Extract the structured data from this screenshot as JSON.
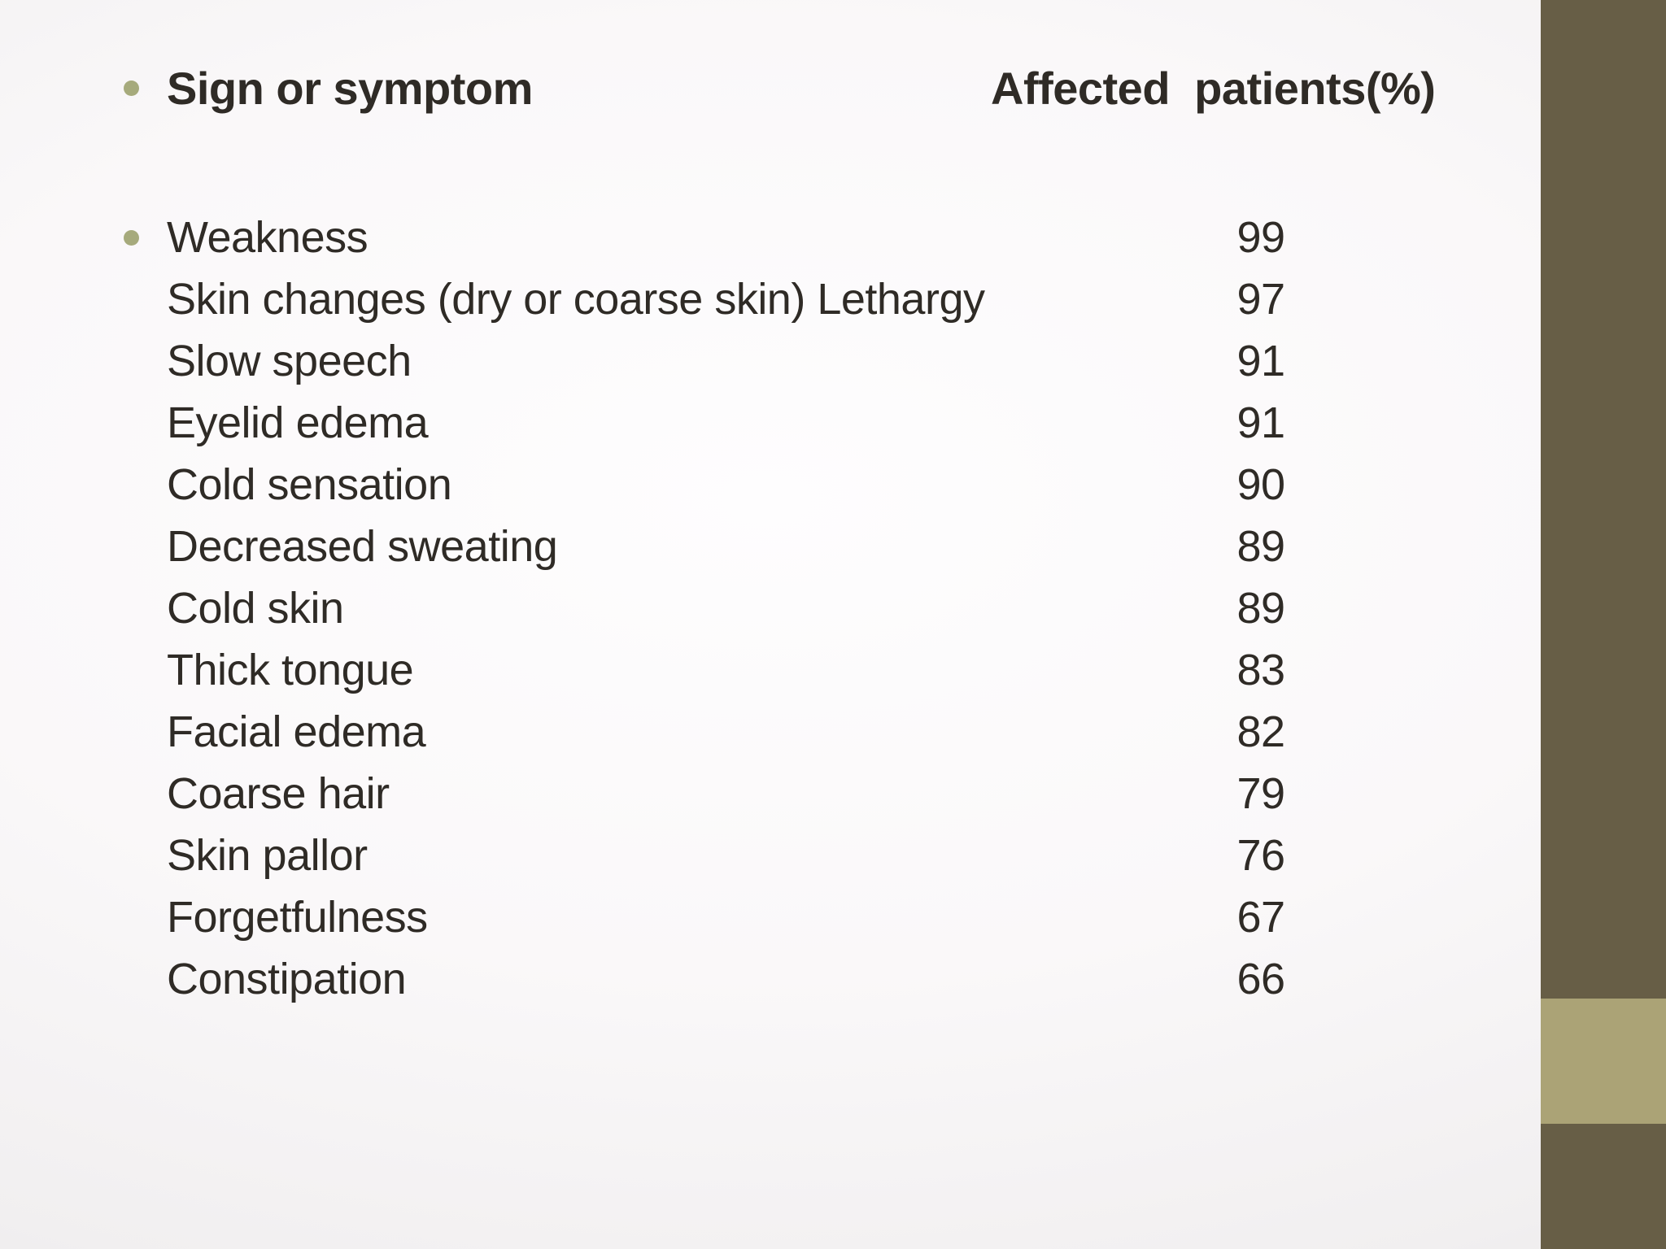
{
  "slide": {
    "header": {
      "col1": "Sign or symptom",
      "col2": "Affected  patients(%)"
    },
    "rows": [
      {
        "label": "Weakness",
        "value": "99"
      },
      {
        "label": "Skin changes (dry or coarse skin) Lethargy",
        "value": "97"
      },
      {
        "label": "Slow speech",
        "value": "91"
      },
      {
        "label": "Eyelid edema",
        "value": "91"
      },
      {
        "label": "Cold sensation",
        "value": "90"
      },
      {
        "label": "Decreased sweating",
        "value": "89"
      },
      {
        "label": "Cold skin",
        "value": "89"
      },
      {
        "label": "Thick tongue",
        "value": "83"
      },
      {
        "label": "Facial edema",
        "value": "82"
      },
      {
        "label": "Coarse hair",
        "value": "79"
      },
      {
        "label": "Skin pallor",
        "value": "76"
      },
      {
        "label": "Forgetfulness",
        "value": "67"
      },
      {
        "label": "Constipation",
        "value": "66"
      }
    ],
    "colors": {
      "accent_bar": "#675e46",
      "accent_band": "#aba376",
      "bullet": "#a6aa7c",
      "text": "#2f2b26"
    }
  }
}
